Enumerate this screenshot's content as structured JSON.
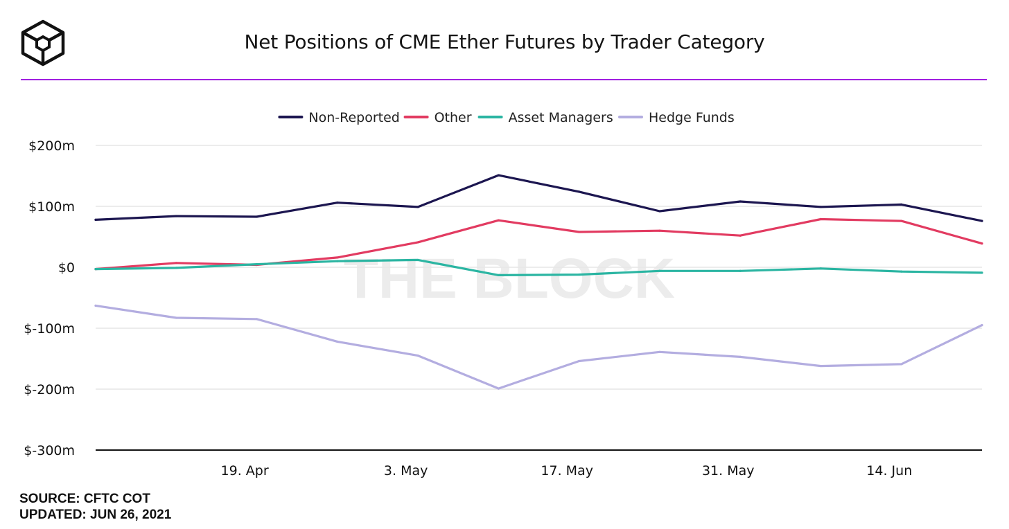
{
  "header": {
    "title": "Net Positions of CME Ether Futures by Trader Category"
  },
  "watermark": "THE BLOCK",
  "footer": {
    "source": "SOURCE: CFTC COT",
    "updated": "UPDATED: JUN 26, 2021"
  },
  "chart_data": {
    "type": "line",
    "title": "Net Positions of CME Ether Futures by Trader Category",
    "xlabel": "",
    "ylabel": "",
    "ylim": [
      -300,
      200
    ],
    "yticks": [
      {
        "value": 200,
        "label": "$200m"
      },
      {
        "value": 100,
        "label": "$100m"
      },
      {
        "value": 0,
        "label": "$0"
      },
      {
        "value": -100,
        "label": "$-100m"
      },
      {
        "value": -200,
        "label": "$-200m"
      },
      {
        "value": -300,
        "label": "$-300m"
      }
    ],
    "x": [
      "2021-04-06",
      "2021-04-13",
      "2021-04-20",
      "2021-04-27",
      "2021-05-04",
      "2021-05-11",
      "2021-05-18",
      "2021-05-25",
      "2021-06-01",
      "2021-06-08",
      "2021-06-15",
      "2021-06-22"
    ],
    "xticks": [
      {
        "index": 1.85,
        "label": "19. Apr"
      },
      {
        "index": 3.85,
        "label": "3. May"
      },
      {
        "index": 5.85,
        "label": "17. May"
      },
      {
        "index": 7.85,
        "label": "31. May"
      },
      {
        "index": 9.85,
        "label": "14. Jun"
      }
    ],
    "grid": true,
    "legend_position": "top-center",
    "series": [
      {
        "name": "Non-Reported",
        "color": "#1c1650",
        "values": [
          78,
          84,
          83,
          106,
          99,
          151,
          124,
          92,
          108,
          99,
          103,
          76
        ]
      },
      {
        "name": "Other",
        "color": "#e23b61",
        "values": [
          -3,
          7,
          4,
          16,
          41,
          77,
          58,
          60,
          52,
          79,
          76,
          39
        ]
      },
      {
        "name": "Asset Managers",
        "color": "#2bb5a2",
        "values": [
          -3,
          -1,
          5,
          10,
          12,
          -13,
          -12,
          -6,
          -6,
          -2,
          -7,
          -9
        ]
      },
      {
        "name": "Hedge Funds",
        "color": "#b3ade0",
        "values": [
          -63,
          -83,
          -85,
          -122,
          -145,
          -199,
          -154,
          -139,
          -147,
          -162,
          -159,
          -95
        ]
      }
    ]
  }
}
